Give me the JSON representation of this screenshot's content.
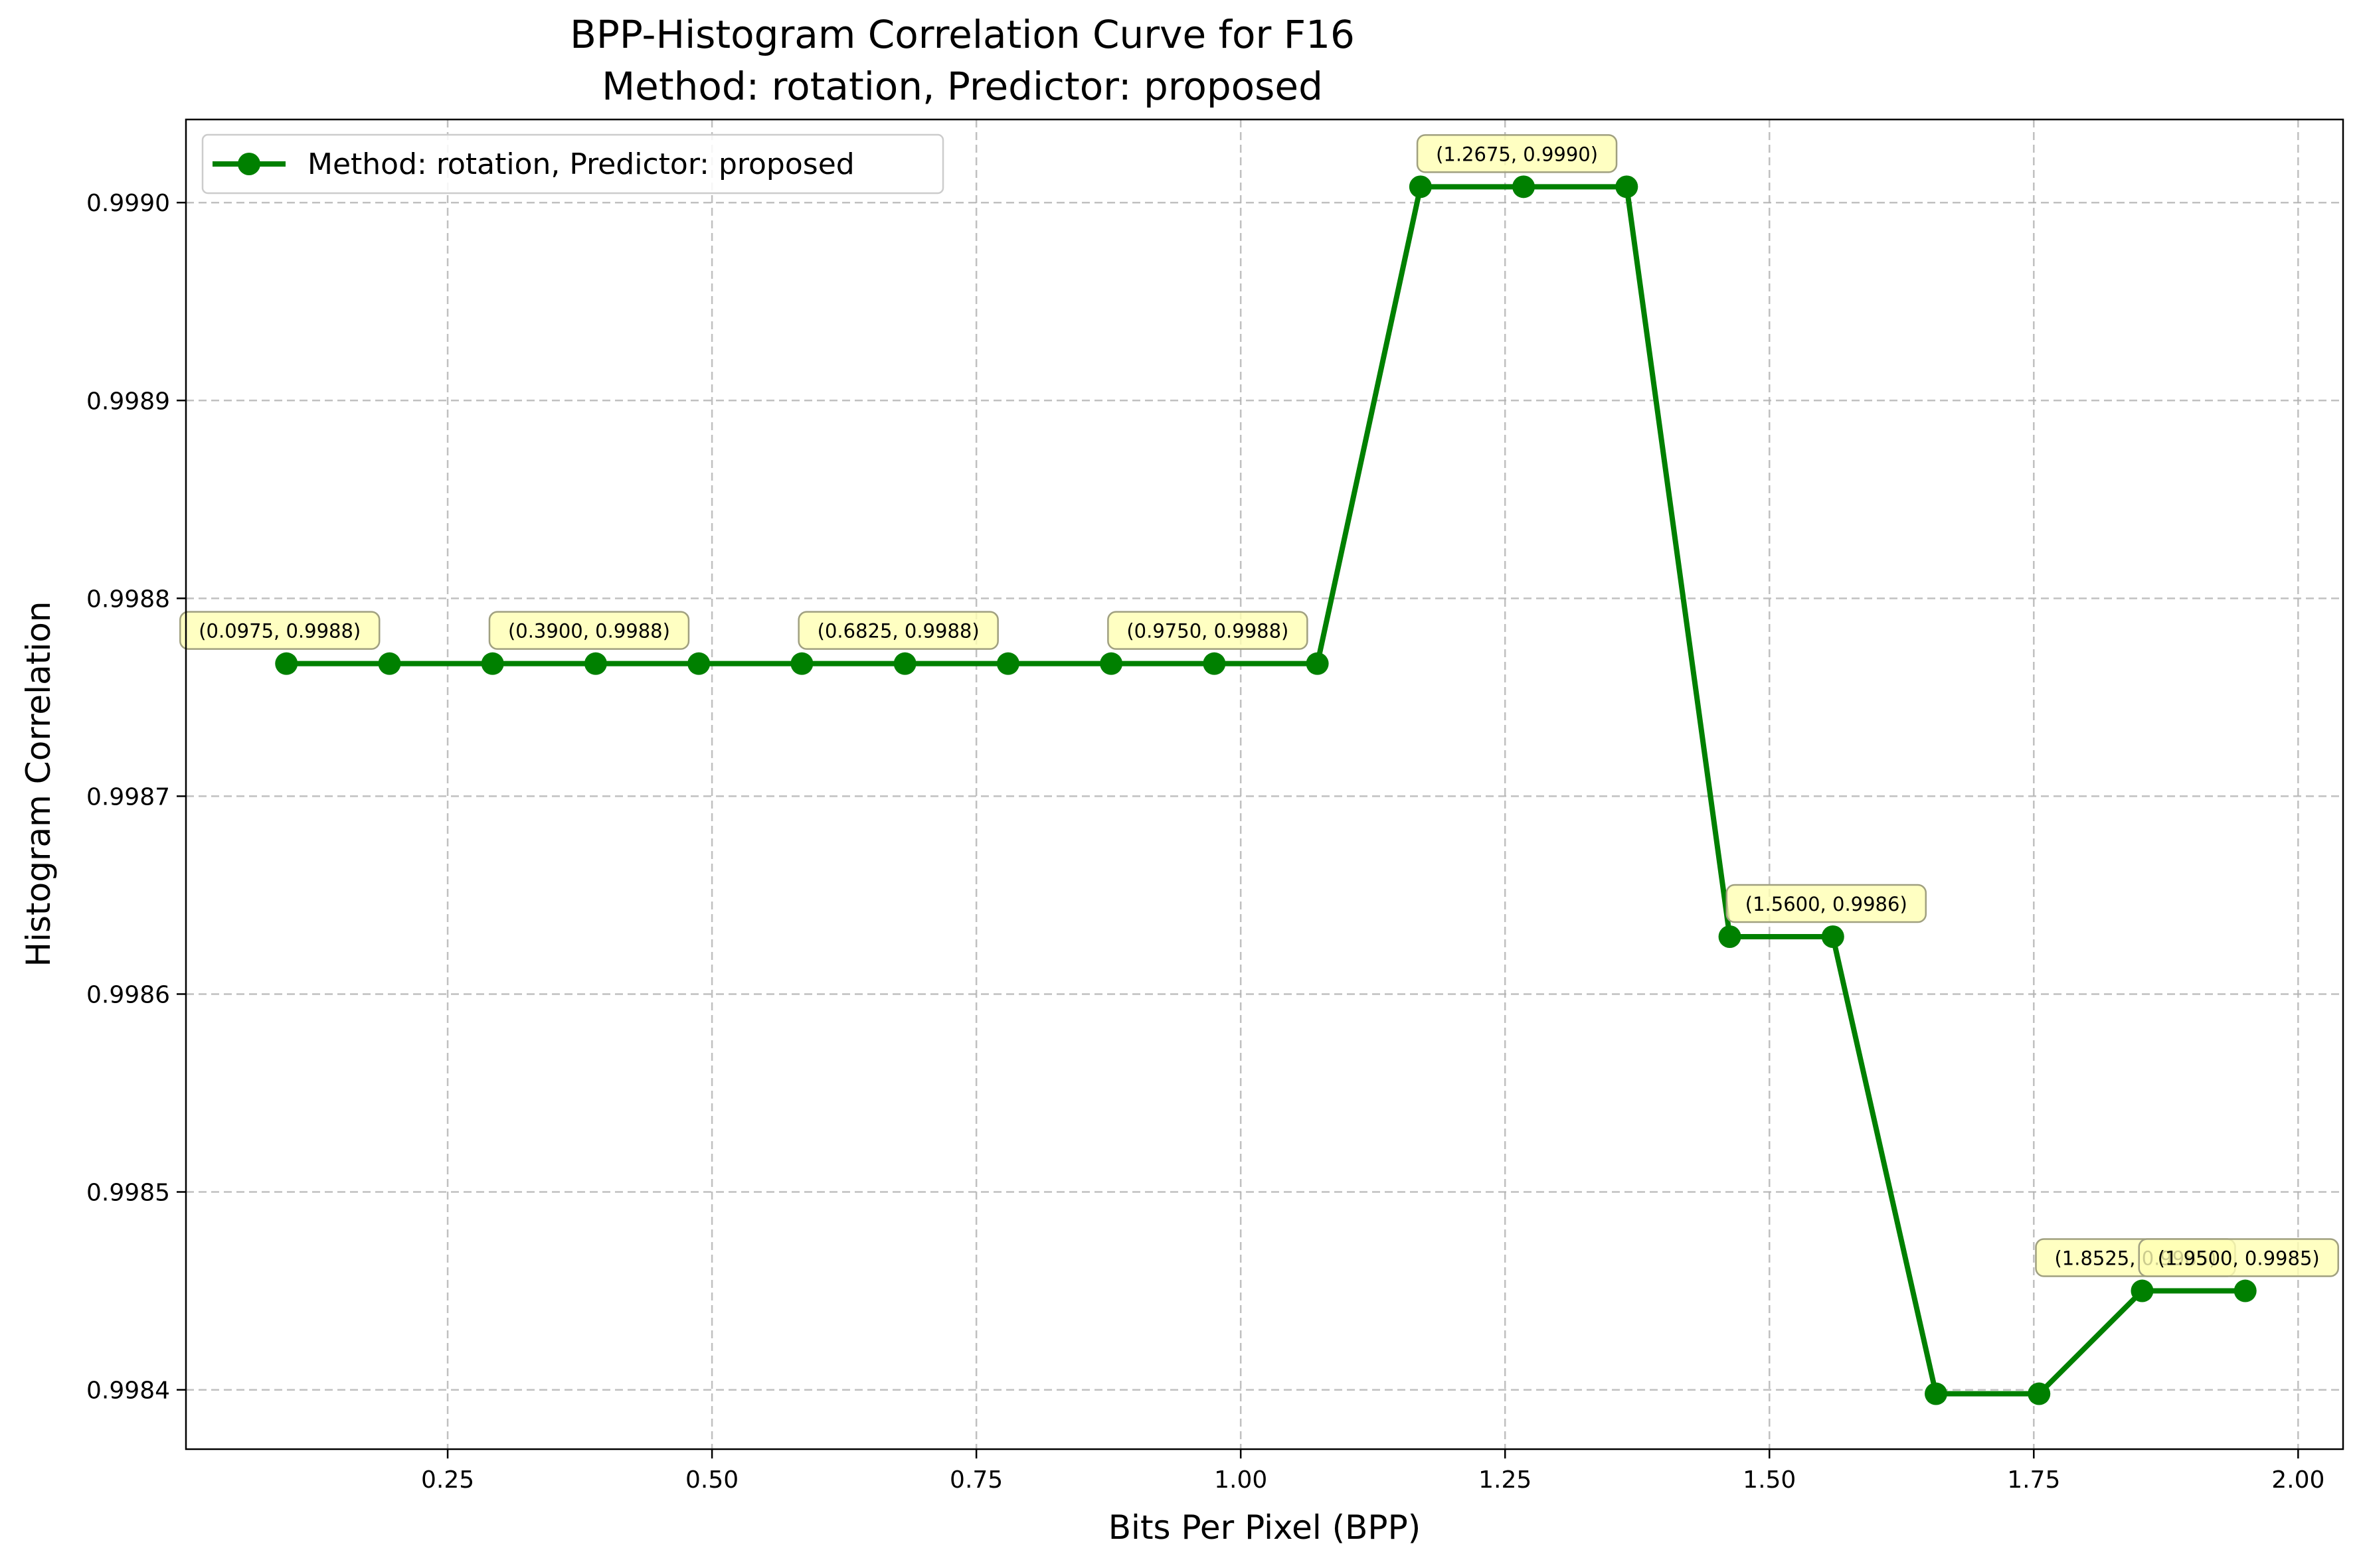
{
  "chart_data": {
    "type": "line",
    "title_line1": "BPP-Histogram Correlation Curve for F16",
    "title_line2": "Method: rotation, Predictor: proposed",
    "xlabel": "Bits Per Pixel (BPP)",
    "ylabel": "Histogram Correlation",
    "xlim": [
      0.0025,
      2.0425
    ],
    "ylim": [
      0.99837,
      0.999042
    ],
    "xticks": [
      0.25,
      0.5,
      0.75,
      1.0,
      1.25,
      1.5,
      1.75,
      2.0
    ],
    "xtick_labels": [
      "0.25",
      "0.50",
      "0.75",
      "1.00",
      "1.25",
      "1.50",
      "1.75",
      "2.00"
    ],
    "yticks": [
      0.9984,
      0.9985,
      0.9986,
      0.9987,
      0.9988,
      0.9989,
      0.999
    ],
    "ytick_labels": [
      "0.9984",
      "0.9985",
      "0.9986",
      "0.9987",
      "0.9988",
      "0.9989",
      "0.9990"
    ],
    "grid": true,
    "legend_position": "top-left",
    "series": [
      {
        "name": "Method: rotation, Predictor: proposed",
        "color": "#008000",
        "x": [
          0.0975,
          0.195,
          0.2925,
          0.39,
          0.4875,
          0.585,
          0.6825,
          0.78,
          0.8775,
          0.975,
          1.0725,
          1.17,
          1.2675,
          1.365,
          1.4625,
          1.56,
          1.6575,
          1.755,
          1.8525,
          1.95
        ],
        "y": [
          0.998767,
          0.998767,
          0.998767,
          0.998767,
          0.998767,
          0.998767,
          0.998767,
          0.998767,
          0.998767,
          0.998767,
          0.998767,
          0.999008,
          0.999008,
          0.999008,
          0.998629,
          0.998629,
          0.998398,
          0.998398,
          0.99845,
          0.99845
        ]
      }
    ],
    "annotations": [
      {
        "point_index": 0,
        "text": "(0.0975, 0.9988)"
      },
      {
        "point_index": 3,
        "text": "(0.3900, 0.9988)"
      },
      {
        "point_index": 6,
        "text": "(0.6825, 0.9988)"
      },
      {
        "point_index": 9,
        "text": "(0.9750, 0.9988)"
      },
      {
        "point_index": 12,
        "text": "(1.2675, 0.9990)"
      },
      {
        "point_index": 15,
        "text": "(1.5600, 0.9986)"
      },
      {
        "point_index": 18,
        "text": "(1.8525, 0.9985)"
      },
      {
        "point_index": 19,
        "text": "(1.9500, 0.9985)"
      }
    ],
    "annotation_colors": {
      "fill": "#ffffb3",
      "edge": "#a0a080"
    }
  }
}
